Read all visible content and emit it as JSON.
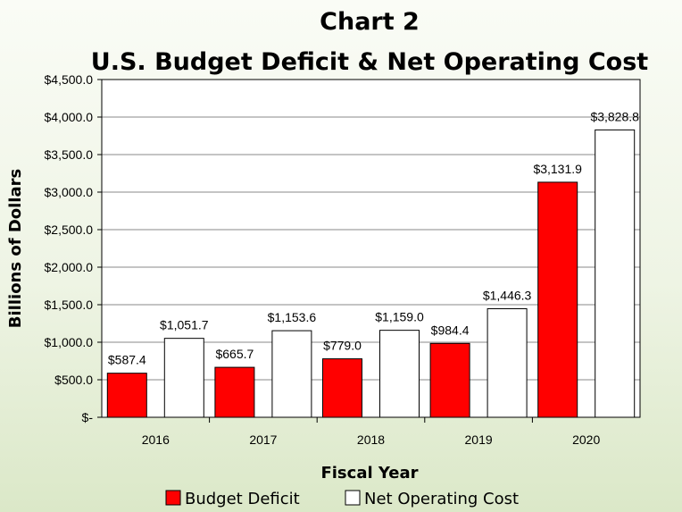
{
  "chart_data": {
    "type": "bar",
    "title": "Chart 2",
    "subtitle": "U.S. Budget Deficit & Net Operating Cost",
    "xlabel": "Fiscal Year",
    "ylabel": "Billions of Dollars",
    "categories": [
      "2016",
      "2017",
      "2018",
      "2019",
      "2020"
    ],
    "ylim": [
      0,
      4500
    ],
    "yticks": [
      0,
      500,
      1000,
      1500,
      2000,
      2500,
      3000,
      3500,
      4000,
      4500
    ],
    "ytick_labels": [
      "$-",
      "$500.0",
      "$1,000.0",
      "$1,500.0",
      "$2,000.0",
      "$2,500.0",
      "$3,000.0",
      "$3,500.0",
      "$4,000.0",
      "$4,500.0"
    ],
    "grid": true,
    "legend_position": "bottom",
    "series": [
      {
        "name": "Budget Deficit",
        "color": "#ff0000",
        "values": [
          587.4,
          665.7,
          779.0,
          984.4,
          3131.9
        ],
        "labels": [
          "$587.4",
          "$665.7",
          "$779.0",
          "$984.4",
          "$3,131.9"
        ]
      },
      {
        "name": "Net Operating Cost",
        "color": "#ffffff",
        "values": [
          1051.7,
          1153.6,
          1159.0,
          1446.3,
          3828.8
        ],
        "labels": [
          "$1,051.7",
          "$1,153.6",
          "$1,159.0",
          "$1,446.3",
          "$3,828.8"
        ]
      }
    ]
  }
}
